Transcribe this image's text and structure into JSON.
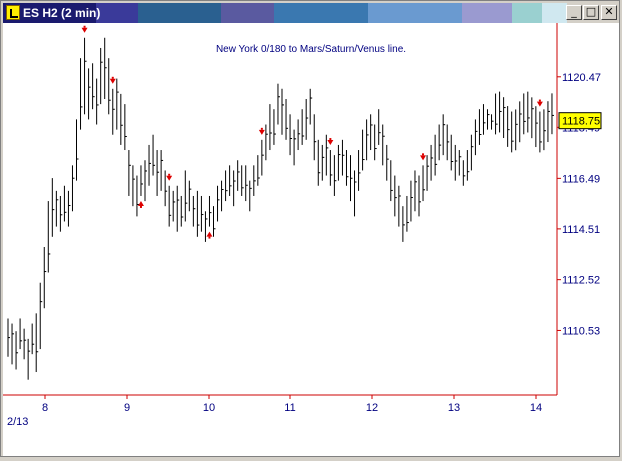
{
  "window": {
    "title": "ES H2 (2 min)",
    "title_stripe_colors": [
      "#1a1a6e",
      "#3a3a9a",
      "#2a6090",
      "#5a5aa0",
      "#3a78b0",
      "#6a9ad0",
      "#9a9ad0",
      "#9ad0d0",
      "#d0e8f0"
    ],
    "buttons": {
      "minimize": "_",
      "maximize": "□",
      "close": "✕"
    }
  },
  "chart_data": {
    "type": "bar",
    "title": "New York 0/180 to Mars/Saturn/Venus line.",
    "xlabel": "",
    "ylabel": "",
    "x_ticks": [
      "8",
      "9",
      "10",
      "11",
      "12",
      "13",
      "14"
    ],
    "x_start_label": "2/13",
    "y_ticks": [
      1120.47,
      1118.49,
      1116.49,
      1114.51,
      1112.52,
      1110.53
    ],
    "ylim": [
      1108.0,
      1122.5
    ],
    "last_price": "1118.75",
    "colors": {
      "bars": "#000000",
      "axis": "#cc0000",
      "markers": "#dd0000",
      "labels": "#000080",
      "price_box": "#ffff00"
    },
    "bars": [
      [
        0,
        1111.0,
        1109.5
      ],
      [
        1,
        1110.8,
        1109.2
      ],
      [
        2,
        1110.5,
        1109.0
      ],
      [
        3,
        1111.0,
        1109.8
      ],
      [
        4,
        1110.6,
        1109.4
      ],
      [
        5,
        1110.2,
        1108.6
      ],
      [
        6,
        1110.8,
        1109.6
      ],
      [
        7,
        1111.2,
        1108.9
      ],
      [
        8,
        1112.4,
        1109.8
      ],
      [
        9,
        1113.8,
        1111.4
      ],
      [
        10,
        1115.6,
        1112.8
      ],
      [
        11,
        1116.5,
        1114.2
      ],
      [
        12,
        1116.0,
        1114.6
      ],
      [
        13,
        1115.8,
        1114.4
      ],
      [
        14,
        1116.2,
        1114.8
      ],
      [
        15,
        1116.0,
        1114.6
      ],
      [
        16,
        1117.0,
        1115.2
      ],
      [
        17,
        1118.8,
        1116.4
      ],
      [
        18,
        1121.2,
        1118.4
      ],
      [
        19,
        1122.0,
        1119.0
      ],
      [
        20,
        1120.8,
        1118.8
      ],
      [
        21,
        1121.0,
        1119.2
      ],
      [
        22,
        1120.4,
        1118.6
      ],
      [
        23,
        1121.6,
        1119.4
      ],
      [
        24,
        1122.0,
        1119.6
      ],
      [
        25,
        1121.2,
        1119.0
      ],
      [
        26,
        1120.0,
        1118.2
      ],
      [
        27,
        1120.4,
        1118.4
      ],
      [
        28,
        1119.8,
        1117.8
      ],
      [
        29,
        1119.4,
        1117.6
      ],
      [
        30,
        1117.6,
        1115.8
      ],
      [
        31,
        1117.0,
        1115.4
      ],
      [
        32,
        1116.6,
        1115.0
      ],
      [
        33,
        1117.0,
        1115.8
      ],
      [
        34,
        1117.2,
        1115.6
      ],
      [
        35,
        1117.8,
        1116.2
      ],
      [
        36,
        1118.2,
        1116.6
      ],
      [
        37,
        1117.6,
        1115.8
      ],
      [
        38,
        1117.6,
        1116.0
      ],
      [
        39,
        1116.8,
        1115.4
      ],
      [
        40,
        1116.2,
        1114.6
      ],
      [
        41,
        1116.0,
        1114.8
      ],
      [
        42,
        1116.2,
        1114.4
      ],
      [
        43,
        1115.8,
        1114.6
      ],
      [
        44,
        1116.8,
        1114.8
      ],
      [
        45,
        1116.4,
        1115.2
      ],
      [
        46,
        1115.8,
        1114.6
      ],
      [
        47,
        1116.0,
        1114.2
      ],
      [
        48,
        1115.8,
        1114.4
      ],
      [
        49,
        1115.2,
        1114.0
      ],
      [
        50,
        1115.8,
        1114.6
      ],
      [
        51,
        1115.4,
        1114.2
      ],
      [
        52,
        1116.2,
        1114.8
      ],
      [
        53,
        1116.4,
        1115.2
      ],
      [
        54,
        1116.8,
        1115.6
      ],
      [
        55,
        1117.0,
        1115.8
      ],
      [
        56,
        1116.8,
        1115.4
      ],
      [
        57,
        1117.2,
        1116.0
      ],
      [
        58,
        1117.0,
        1115.8
      ],
      [
        59,
        1117.0,
        1115.6
      ],
      [
        60,
        1116.4,
        1115.2
      ],
      [
        61,
        1117.0,
        1115.8
      ],
      [
        62,
        1117.4,
        1116.2
      ],
      [
        63,
        1118.0,
        1116.6
      ],
      [
        64,
        1118.6,
        1117.2
      ],
      [
        65,
        1119.4,
        1117.6
      ],
      [
        66,
        1119.2,
        1117.8
      ],
      [
        67,
        1120.2,
        1118.6
      ],
      [
        68,
        1120.0,
        1118.2
      ],
      [
        69,
        1119.6,
        1118.0
      ],
      [
        70,
        1119.0,
        1117.4
      ],
      [
        71,
        1118.4,
        1117.0
      ],
      [
        72,
        1118.8,
        1117.6
      ],
      [
        73,
        1119.2,
        1117.8
      ],
      [
        74,
        1119.6,
        1118.0
      ],
      [
        75,
        1120.0,
        1118.6
      ],
      [
        76,
        1119.0,
        1117.2
      ],
      [
        77,
        1118.0,
        1116.2
      ],
      [
        78,
        1117.8,
        1116.4
      ],
      [
        79,
        1118.2,
        1116.6
      ],
      [
        80,
        1117.6,
        1116.2
      ],
      [
        81,
        1117.4,
        1115.8
      ],
      [
        82,
        1117.8,
        1116.4
      ],
      [
        83,
        1118.0,
        1116.6
      ],
      [
        84,
        1117.6,
        1116.2
      ],
      [
        85,
        1117.4,
        1115.6
      ],
      [
        86,
        1116.8,
        1115.0
      ],
      [
        87,
        1117.6,
        1116.0
      ],
      [
        88,
        1118.4,
        1116.8
      ],
      [
        89,
        1118.8,
        1117.2
      ],
      [
        90,
        1119.0,
        1117.6
      ],
      [
        91,
        1118.6,
        1117.2
      ],
      [
        92,
        1119.2,
        1117.8
      ],
      [
        93,
        1118.6,
        1117.0
      ],
      [
        94,
        1117.8,
        1116.4
      ],
      [
        95,
        1117.2,
        1115.6
      ],
      [
        96,
        1116.6,
        1115.0
      ],
      [
        97,
        1116.2,
        1114.6
      ],
      [
        98,
        1115.4,
        1114.0
      ],
      [
        99,
        1115.8,
        1114.4
      ],
      [
        100,
        1116.4,
        1114.8
      ],
      [
        101,
        1116.8,
        1115.2
      ],
      [
        102,
        1116.6,
        1115.0
      ],
      [
        103,
        1117.0,
        1115.6
      ],
      [
        104,
        1117.4,
        1116.0
      ],
      [
        105,
        1117.8,
        1116.4
      ],
      [
        106,
        1118.2,
        1116.6
      ],
      [
        107,
        1118.6,
        1117.2
      ],
      [
        108,
        1119.0,
        1117.4
      ],
      [
        109,
        1118.6,
        1117.2
      ],
      [
        110,
        1118.2,
        1116.8
      ],
      [
        111,
        1117.8,
        1116.4
      ],
      [
        112,
        1117.6,
        1116.6
      ],
      [
        113,
        1117.2,
        1116.2
      ],
      [
        114,
        1117.6,
        1116.4
      ],
      [
        115,
        1118.2,
        1116.8
      ],
      [
        116,
        1118.8,
        1117.4
      ],
      [
        117,
        1119.2,
        1117.8
      ],
      [
        118,
        1119.4,
        1118.2
      ],
      [
        119,
        1119.2,
        1118.4
      ],
      [
        120,
        1119.0,
        1118.4
      ]
    ],
    "markers": [
      {
        "bar": 19,
        "dir": "down"
      },
      {
        "bar": 26,
        "dir": "down"
      },
      {
        "bar": 33,
        "dir": "up"
      },
      {
        "bar": 40,
        "dir": "down"
      },
      {
        "bar": 50,
        "dir": "up"
      },
      {
        "bar": 63,
        "dir": "down"
      },
      {
        "bar": 80,
        "dir": "down"
      },
      {
        "bar": 103,
        "dir": "down"
      },
      {
        "bar": 132,
        "dir": "down"
      }
    ]
  }
}
